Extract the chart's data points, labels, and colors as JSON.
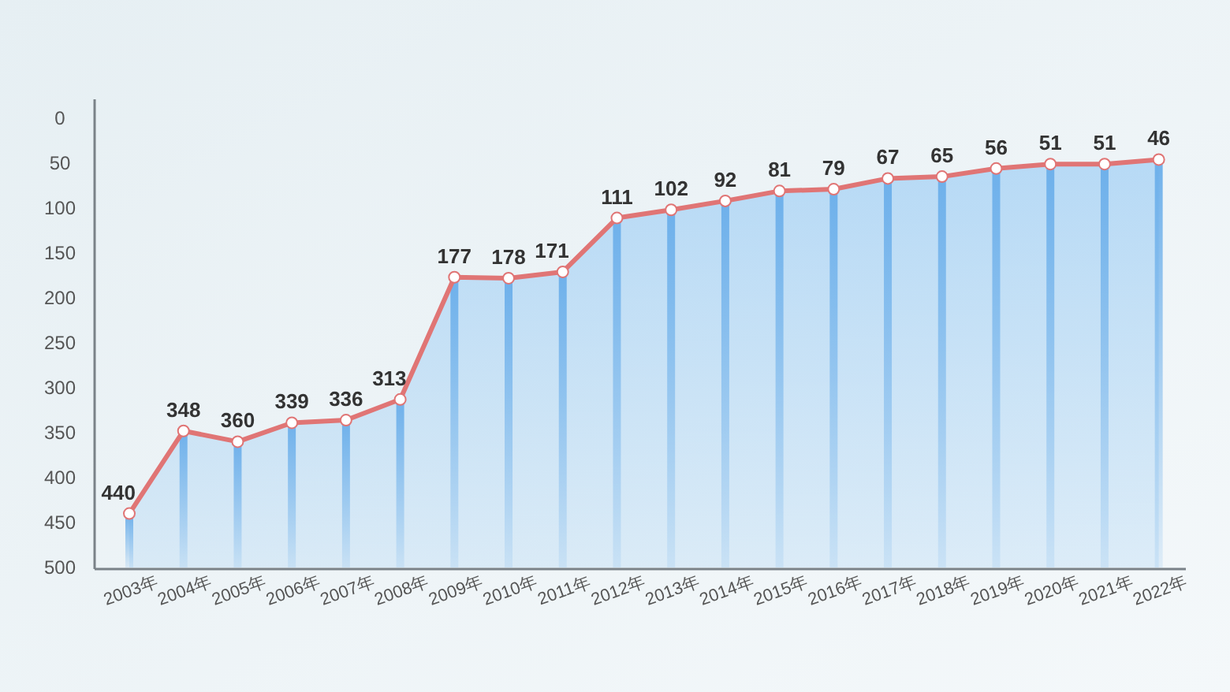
{
  "chart_data": {
    "type": "line",
    "categories": [
      "2003年",
      "2004年",
      "2005年",
      "2006年",
      "2007年",
      "2008年",
      "2009年",
      "2010年",
      "2011年",
      "2012年",
      "2013年",
      "2014年",
      "2015年",
      "2016年",
      "2017年",
      "2018年",
      "2019年",
      "2020年",
      "2021年",
      "2022年"
    ],
    "ylim": [
      500,
      0
    ],
    "yticks": [
      0,
      50,
      100,
      150,
      200,
      250,
      300,
      350,
      400,
      450,
      500
    ],
    "marker": "circle",
    "series": [
      {
        "type": "bar",
        "color": "#6aaeea",
        "base": [
          440,
          348,
          360,
          339,
          336,
          313,
          177,
          178,
          171,
          111,
          102,
          92,
          81,
          79,
          67,
          65,
          56,
          51,
          51,
          46
        ],
        "values": [
          60,
          152,
          140,
          161,
          164,
          187,
          323,
          322,
          329,
          389,
          398,
          408,
          419,
          421,
          433,
          435,
          444,
          449,
          449,
          454
        ]
      },
      {
        "color": "#e07575",
        "values": [
          440,
          348,
          360,
          339,
          336,
          313,
          177,
          178,
          171,
          111,
          102,
          92,
          81,
          79,
          67,
          65,
          56,
          51,
          51,
          46
        ],
        "value_labels": [
          "440",
          "348",
          "360",
          "339",
          "336",
          "313",
          "177",
          "178",
          "171",
          "111",
          "102",
          "92",
          "81",
          "79",
          "67",
          "65",
          "56",
          "51",
          "51",
          "46"
        ],
        "lower": [
          500,
          500,
          500,
          500,
          500,
          500,
          500,
          500,
          500,
          500,
          500,
          500,
          500,
          500,
          500,
          500,
          500,
          500,
          500,
          500
        ],
        "upper": [
          440,
          348,
          360,
          339,
          336,
          313,
          177,
          178,
          171,
          111,
          102,
          92,
          81,
          79,
          67,
          65,
          56,
          51,
          51,
          46
        ]
      }
    ]
  }
}
